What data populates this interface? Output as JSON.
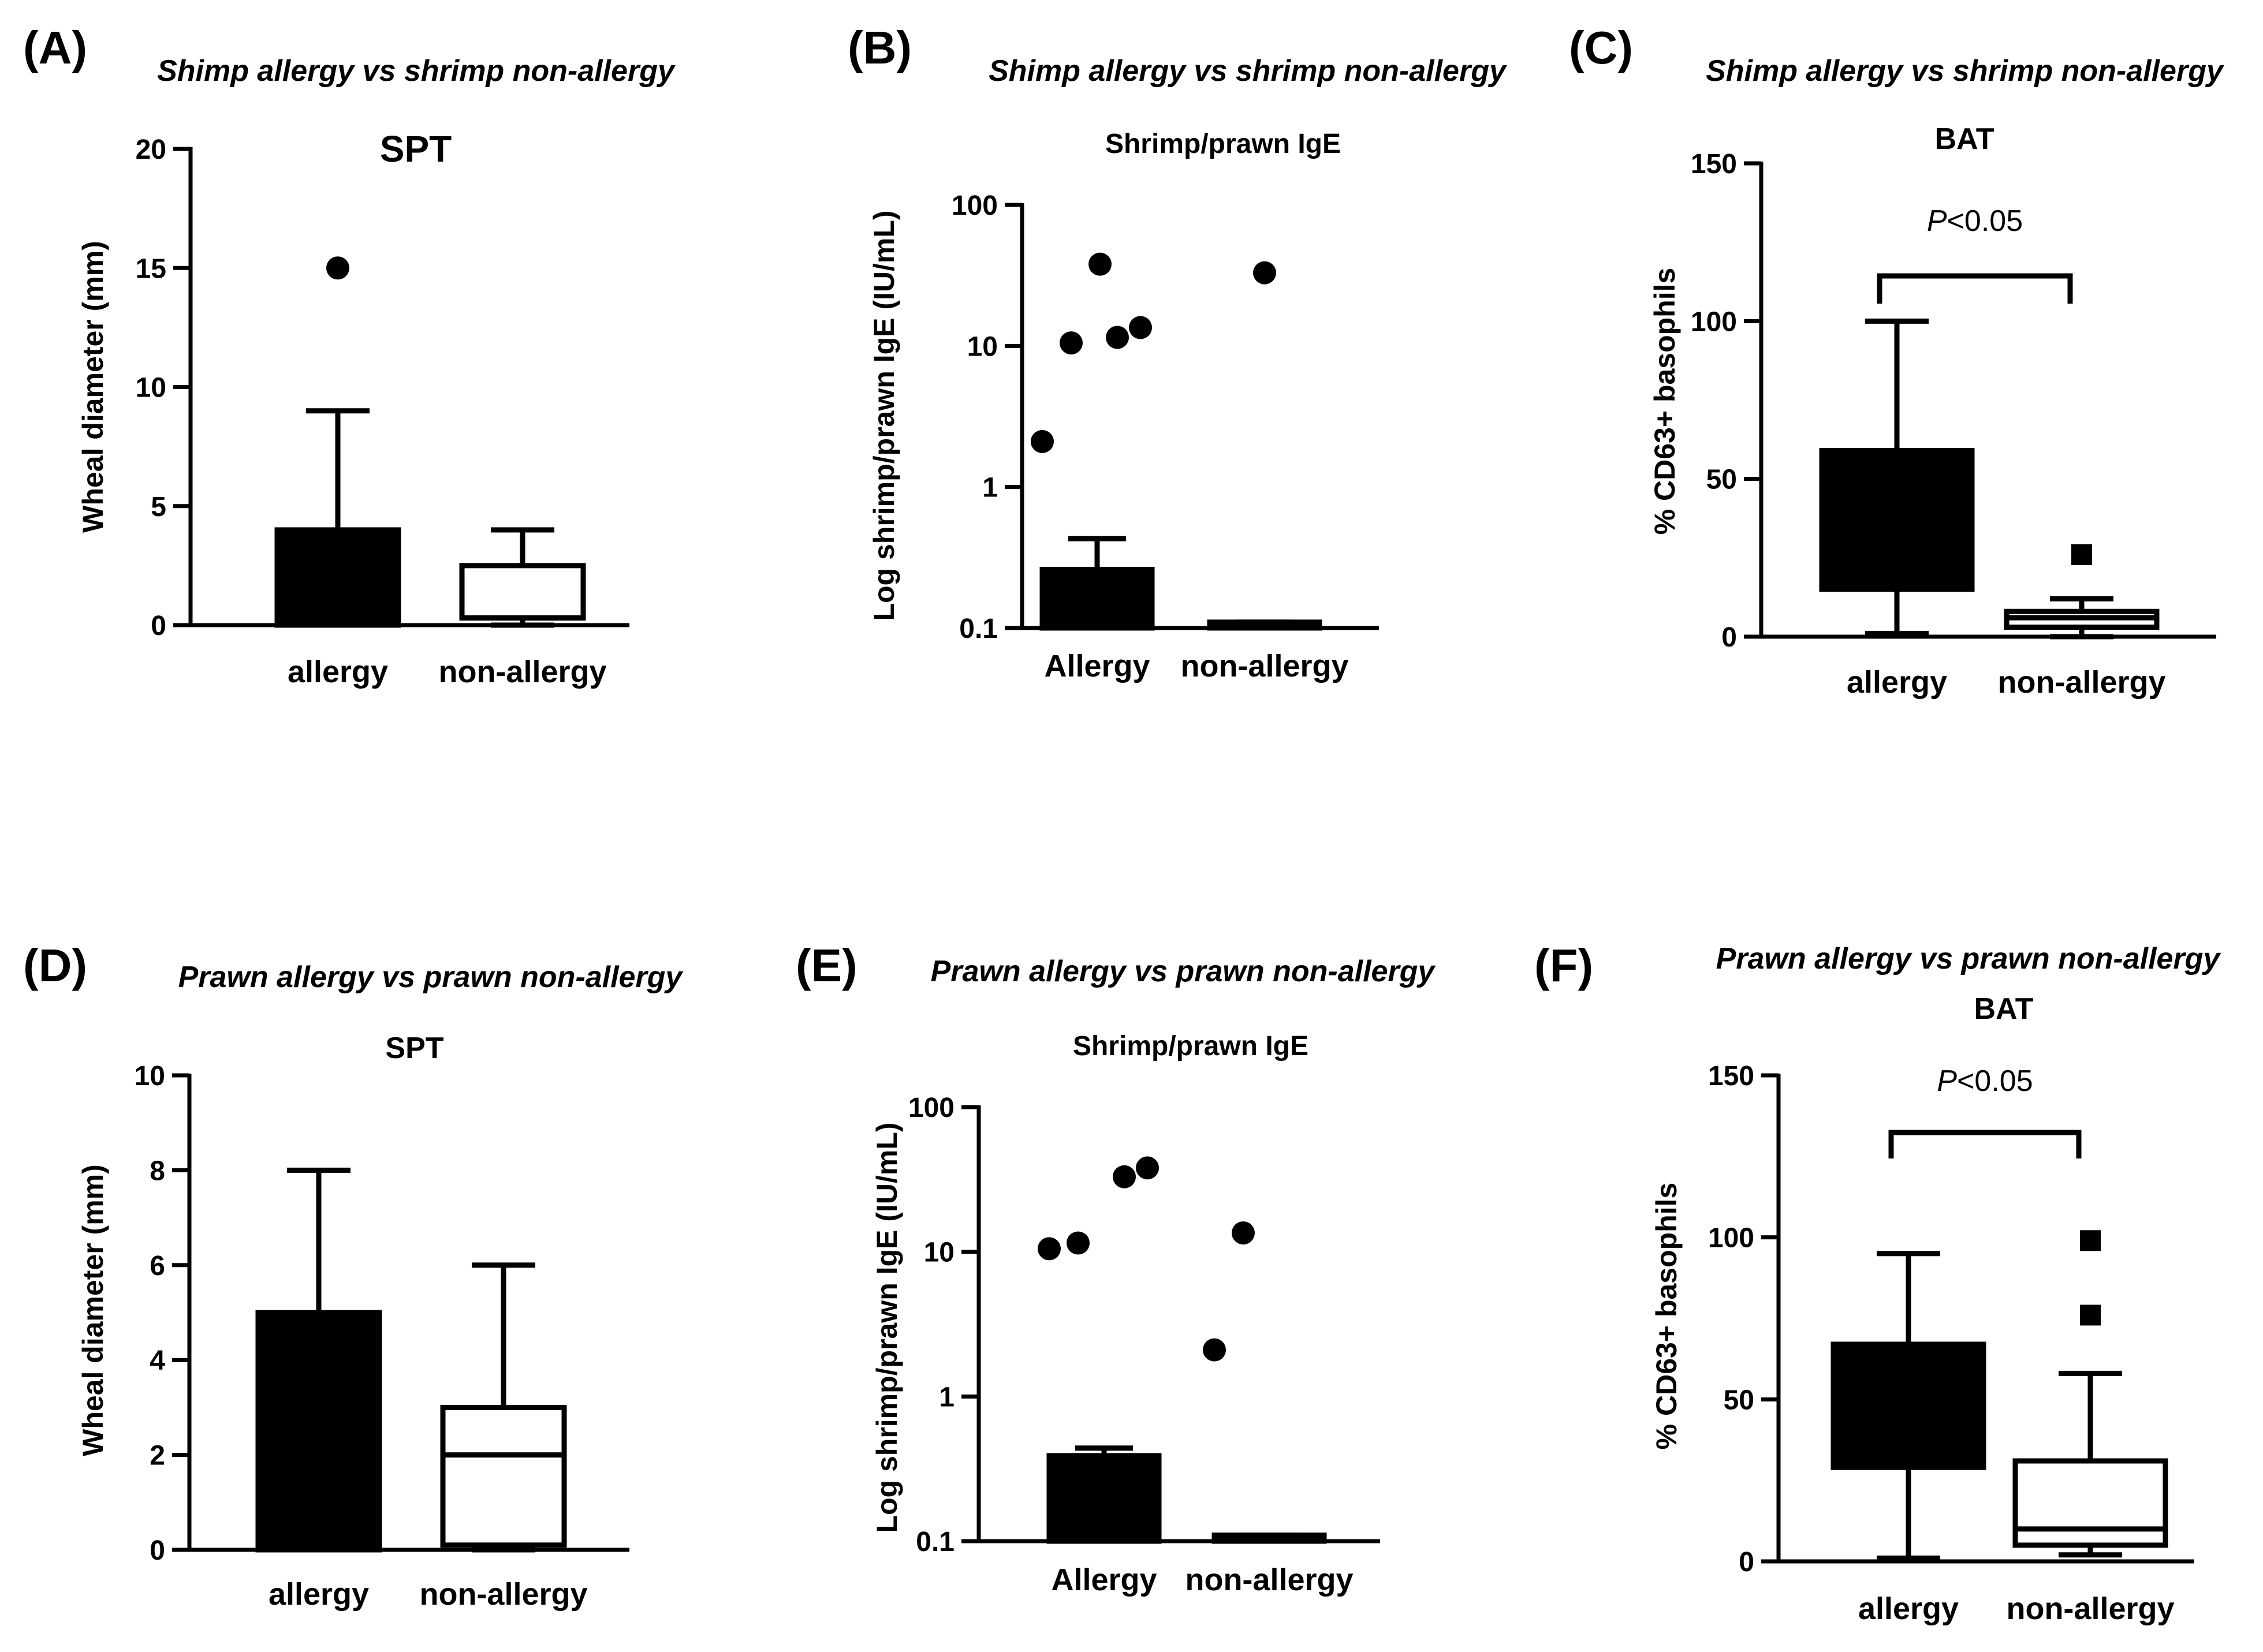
{
  "chart_data": [
    {
      "panel": "(A)",
      "subtitle": "Shimp allergy vs shrimp non-allergy",
      "title": "SPT",
      "type": "box",
      "ylabel": "Wheal diameter (mm)",
      "scale": "linear",
      "ylim": [
        0,
        20
      ],
      "yticks": [
        0,
        5,
        10,
        15,
        20
      ],
      "ytick_labels": [
        "0",
        "5",
        "10",
        "15",
        "20"
      ],
      "categories": [
        "allergy",
        "non-allergy"
      ],
      "groups": [
        {
          "name": "allergy",
          "fill": "filled",
          "min": 0,
          "q1": 0,
          "median": 0,
          "q3": 4,
          "max": 9,
          "outliers": [
            15
          ],
          "marker": "circle"
        },
        {
          "name": "non-allergy",
          "fill": "open",
          "min": 0,
          "q1": 0.3,
          "median": 0.3,
          "q3": 2.5,
          "max": 4,
          "outliers": [],
          "marker": "circle"
        }
      ]
    },
    {
      "panel": "(B)",
      "subtitle": "Shimp allergy vs shrimp non-allergy",
      "title": "Shrimp/prawn IgE",
      "type": "box",
      "ylabel": "Log shrimp/prawn IgE (IU/mL)",
      "scale": "log",
      "ylim": [
        0.1,
        100
      ],
      "yticks": [
        0.1,
        1,
        10,
        100
      ],
      "ytick_labels": [
        "0.1",
        "1",
        "10",
        "100"
      ],
      "categories": [
        "Allergy",
        "non-allergy"
      ],
      "groups": [
        {
          "name": "Allergy",
          "fill": "filled",
          "min": 0.1,
          "q1": 0.1,
          "median": 0.1,
          "q3": 0.26,
          "max": 0.43,
          "outliers": [
            2.1,
            10.5,
            11.5,
            13.5,
            38
          ],
          "marker": "circle"
        },
        {
          "name": "non-allergy",
          "fill": "filled",
          "min": 0.1,
          "q1": 0.1,
          "median": 0.1,
          "q3": 0.11,
          "max": 0.11,
          "outliers": [
            33
          ],
          "marker": "circle"
        }
      ]
    },
    {
      "panel": "(C)",
      "subtitle": "Shimp allergy vs shrimp non-allergy",
      "title": "BAT",
      "type": "box",
      "ylabel": "% CD63+ basophils",
      "scale": "linear",
      "ylim": [
        0,
        150
      ],
      "yticks": [
        0,
        50,
        100,
        150
      ],
      "ytick_labels": [
        "0",
        "50",
        "100",
        "150"
      ],
      "categories": [
        "allergy",
        "non-allergy"
      ],
      "groups": [
        {
          "name": "allergy",
          "fill": "filled",
          "min": 1,
          "q1": 15,
          "median": 15,
          "q3": 59,
          "max": 100,
          "outliers": [],
          "marker": "square"
        },
        {
          "name": "non-allergy",
          "fill": "open",
          "min": 0,
          "q1": 3,
          "median": 6,
          "q3": 8,
          "max": 12,
          "outliers": [
            26
          ],
          "marker": "square"
        }
      ],
      "significance": "P<0.05",
      "significance_italic": "P",
      "significance_rest": "<0.05"
    },
    {
      "panel": "(D)",
      "subtitle": "Prawn allergy vs prawn non-allergy",
      "title": "SPT",
      "type": "box",
      "ylabel": "Wheal diameter (mm)",
      "scale": "linear",
      "ylim": [
        0,
        10
      ],
      "yticks": [
        0,
        2,
        4,
        6,
        8,
        10
      ],
      "ytick_labels": [
        "0",
        "2",
        "4",
        "6",
        "8",
        "10"
      ],
      "categories": [
        "allergy",
        "non-allergy"
      ],
      "groups": [
        {
          "name": "allergy",
          "fill": "filled",
          "min": 0,
          "q1": 0,
          "median": 0,
          "q3": 5,
          "max": 8,
          "outliers": [],
          "marker": "circle"
        },
        {
          "name": "non-allergy",
          "fill": "open",
          "min": 0,
          "q1": 0.1,
          "median": 2,
          "q3": 3,
          "max": 6,
          "outliers": [],
          "marker": "circle"
        }
      ]
    },
    {
      "panel": "(E)",
      "subtitle": "Prawn allergy vs prawn non-allergy",
      "title": "Shrimp/prawn IgE",
      "type": "box",
      "ylabel": "Log shrimp/prawn IgE (IU/mL)",
      "scale": "log",
      "ylim": [
        0.1,
        100
      ],
      "yticks": [
        0.1,
        1,
        10,
        100
      ],
      "ytick_labels": [
        "0.1",
        "1",
        "10",
        "100"
      ],
      "categories": [
        "Allergy",
        "non-allergy"
      ],
      "groups": [
        {
          "name": "Allergy",
          "fill": "filled",
          "min": 0.1,
          "q1": 0.1,
          "median": 0.1,
          "q3": 0.39,
          "max": 0.44,
          "outliers": [
            10.5,
            11.5,
            33,
            38
          ],
          "marker": "circle"
        },
        {
          "name": "non-allergy",
          "fill": "filled",
          "min": 0.1,
          "q1": 0.1,
          "median": 0.1,
          "q3": 0.11,
          "max": 0.11,
          "outliers": [
            2.1,
            13.5
          ],
          "marker": "circle"
        }
      ]
    },
    {
      "panel": "(F)",
      "subtitle": "Prawn allergy vs prawn non-allergy",
      "title": "BAT",
      "type": "box",
      "ylabel": "% CD63+ basophils",
      "scale": "linear",
      "ylim": [
        0,
        150
      ],
      "yticks": [
        0,
        50,
        100,
        150
      ],
      "ytick_labels": [
        "0",
        "50",
        "100",
        "150"
      ],
      "categories": [
        "allergy",
        "non-allergy"
      ],
      "groups": [
        {
          "name": "allergy",
          "fill": "filled",
          "min": 1,
          "q1": 29,
          "median": 29,
          "q3": 67,
          "max": 95,
          "outliers": [],
          "marker": "square"
        },
        {
          "name": "non-allergy",
          "fill": "open",
          "min": 2,
          "q1": 5,
          "median": 10,
          "q3": 31,
          "max": 58,
          "outliers": [
            76,
            99
          ],
          "marker": "square"
        }
      ],
      "significance": "P<0.05",
      "significance_italic": "P",
      "significance_rest": "<0.05"
    }
  ]
}
